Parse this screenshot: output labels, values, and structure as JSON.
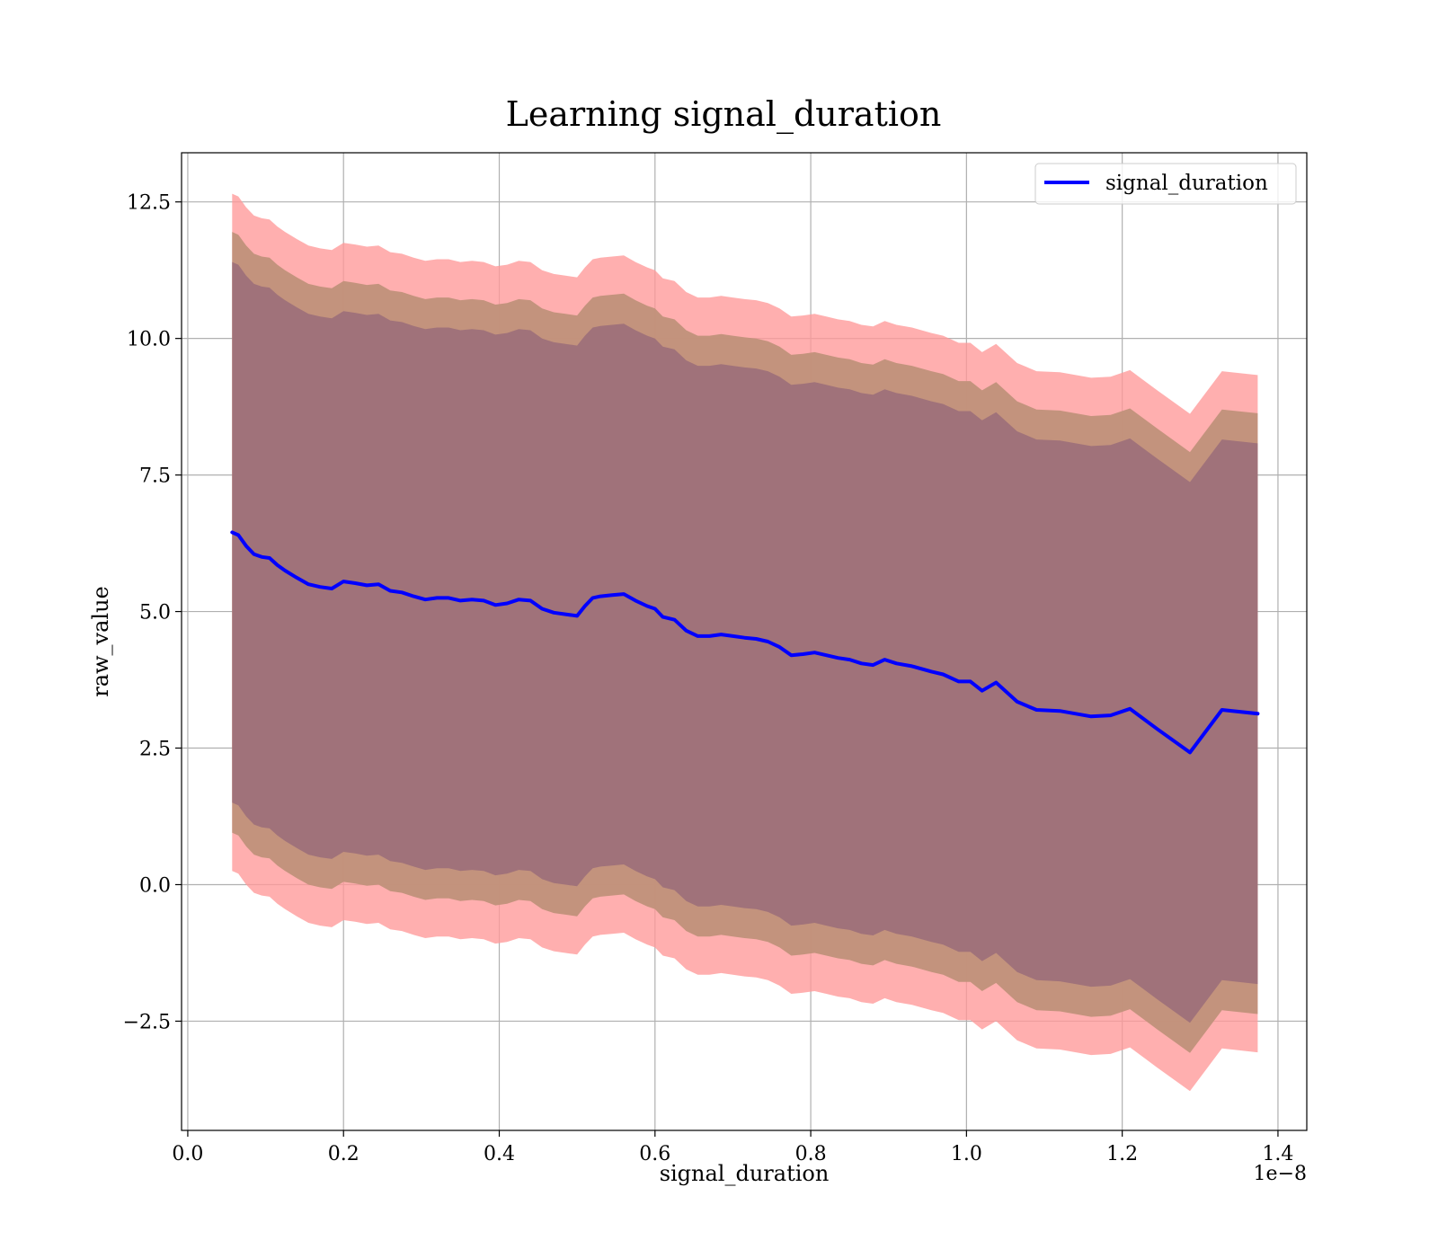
{
  "chart_data": {
    "type": "line",
    "title": "Learning signal_duration",
    "xlabel": "signal_duration",
    "ylabel": "raw_value",
    "x_offset_text": "1e−8",
    "xlim": [
      -0.008,
      1.437
    ],
    "ylim": [
      -4.5,
      13.4
    ],
    "x_ticks": [
      0.0,
      0.2,
      0.4,
      0.6,
      0.8,
      1.0,
      1.2,
      1.4
    ],
    "x_tick_labels": [
      "0.0",
      "0.2",
      "0.4",
      "0.6",
      "0.8",
      "1.0",
      "1.2",
      "1.4"
    ],
    "y_ticks": [
      -2.5,
      0.0,
      2.5,
      5.0,
      7.5,
      10.0,
      12.5
    ],
    "y_tick_labels": [
      "−2.5",
      "0.0",
      "2.5",
      "5.0",
      "7.5",
      "10.0",
      "12.5"
    ],
    "grid": true,
    "legend_position": "top-right",
    "legend": [
      "signal_duration"
    ],
    "colors": {
      "line": "#0000ff",
      "band_outer": "#ff9999",
      "band_middle": "#c0917a",
      "band_inner": "#a0727a"
    },
    "x": [
      0.057,
      0.065,
      0.075,
      0.085,
      0.095,
      0.105,
      0.115,
      0.125,
      0.14,
      0.155,
      0.17,
      0.185,
      0.2,
      0.215,
      0.23,
      0.245,
      0.26,
      0.275,
      0.29,
      0.305,
      0.32,
      0.335,
      0.35,
      0.365,
      0.38,
      0.395,
      0.41,
      0.425,
      0.44,
      0.455,
      0.47,
      0.485,
      0.5,
      0.51,
      0.52,
      0.53,
      0.545,
      0.56,
      0.575,
      0.59,
      0.6,
      0.61,
      0.625,
      0.64,
      0.655,
      0.67,
      0.685,
      0.7,
      0.715,
      0.73,
      0.745,
      0.76,
      0.775,
      0.79,
      0.805,
      0.82,
      0.835,
      0.85,
      0.865,
      0.88,
      0.895,
      0.91,
      0.93,
      0.955,
      0.97,
      0.99,
      1.005,
      1.02,
      1.038,
      1.065,
      1.09,
      1.12,
      1.16,
      1.185,
      1.21,
      1.245,
      1.287,
      1.328,
      1.374
    ],
    "series": [
      {
        "name": "signal_duration",
        "values": [
          6.45,
          6.4,
          6.2,
          6.05,
          6.0,
          5.98,
          5.85,
          5.75,
          5.62,
          5.5,
          5.45,
          5.42,
          5.55,
          5.52,
          5.48,
          5.5,
          5.38,
          5.35,
          5.28,
          5.22,
          5.25,
          5.25,
          5.2,
          5.22,
          5.2,
          5.12,
          5.15,
          5.22,
          5.2,
          5.05,
          4.98,
          4.95,
          4.92,
          5.1,
          5.25,
          5.28,
          5.3,
          5.32,
          5.2,
          5.1,
          5.05,
          4.9,
          4.85,
          4.65,
          4.55,
          4.55,
          4.58,
          4.55,
          4.52,
          4.5,
          4.45,
          4.35,
          4.2,
          4.22,
          4.25,
          4.2,
          4.15,
          4.12,
          4.05,
          4.02,
          4.12,
          4.05,
          4.0,
          3.9,
          3.85,
          3.72,
          3.72,
          3.55,
          3.7,
          3.35,
          3.2,
          3.18,
          3.08,
          3.1,
          3.22,
          2.85,
          2.42,
          3.2,
          3.13
        ]
      }
    ],
    "bands": [
      {
        "name": "outer",
        "half_width": 6.2
      },
      {
        "name": "middle",
        "half_width": 5.5
      },
      {
        "name": "inner",
        "half_width": 4.95
      }
    ]
  }
}
